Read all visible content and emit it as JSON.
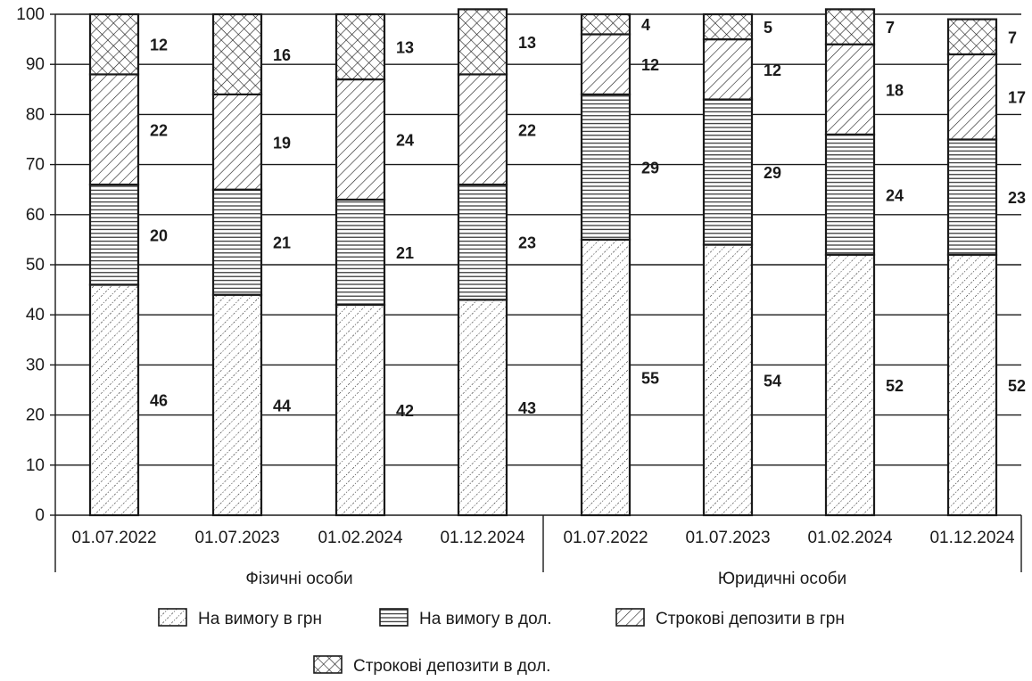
{
  "chart_data": {
    "type": "bar",
    "stacked": true,
    "ylim": [
      0,
      100
    ],
    "yticks": [
      0,
      10,
      20,
      30,
      40,
      50,
      60,
      70,
      80,
      90,
      100
    ],
    "grid": "horizontal",
    "legend_position": "bottom",
    "groups": [
      {
        "name": "Фізичні особи",
        "categories": [
          "01.07.2022",
          "01.07.2023",
          "01.02.2024",
          "01.12.2024"
        ]
      },
      {
        "name": "Юридичні особи",
        "categories": [
          "01.07.2022",
          "01.07.2023",
          "01.02.2024",
          "01.12.2024"
        ]
      }
    ],
    "series": [
      {
        "name": "На вимогу в грн",
        "pattern": "dots-diagonal",
        "values": [
          46,
          44,
          42,
          43,
          55,
          54,
          52,
          52
        ],
        "labels": [
          "46",
          "44",
          "42",
          "43",
          "55",
          "54",
          "52",
          "52"
        ]
      },
      {
        "name": "На вимогу в дол.",
        "pattern": "horizontal-lines",
        "values": [
          20,
          21,
          21,
          23,
          29,
          29,
          24,
          23
        ],
        "labels": [
          "20",
          "21",
          "21",
          "23",
          "29",
          "29",
          "24",
          "23"
        ]
      },
      {
        "name": "Строкові депозити в грн",
        "pattern": "diagonal-lines",
        "values": [
          22,
          19,
          24,
          22,
          12,
          12,
          18,
          17
        ],
        "labels": [
          "22",
          "19",
          "24",
          "22",
          "12",
          "12",
          "18",
          "17"
        ]
      },
      {
        "name": "Строкові депозити в дол.",
        "pattern": "crosshatch",
        "values": [
          12,
          16,
          13,
          13,
          4,
          5,
          7,
          7
        ],
        "labels": [
          "12",
          "16",
          "13",
          "13",
          "4",
          "5",
          "7",
          "7"
        ]
      }
    ]
  }
}
